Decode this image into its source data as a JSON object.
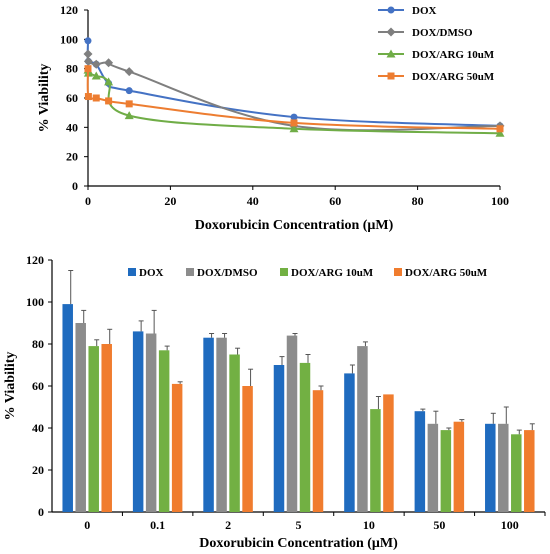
{
  "chart_data": [
    {
      "type": "line",
      "xlabel": "Doxorubicin Concentration (μM)",
      "ylabel": "% Viability",
      "xlim": [
        0,
        100
      ],
      "ylim": [
        0,
        120
      ],
      "xticks": [
        0,
        20,
        40,
        60,
        80,
        100
      ],
      "yticks": [
        0,
        20,
        40,
        60,
        80,
        100,
        120
      ],
      "grid": false,
      "legend_position": "top-right",
      "series": [
        {
          "name": "DOX",
          "color": "#4472C4",
          "marker": "circle",
          "x": [
            0,
            0.1,
            2,
            5,
            10,
            50,
            100
          ],
          "y": [
            99,
            85,
            83,
            70,
            65,
            47,
            41
          ]
        },
        {
          "name": "DOX/DMSO",
          "color": "#7F7F7F",
          "marker": "diamond",
          "x": [
            0,
            0.1,
            2,
            5,
            10,
            50,
            100
          ],
          "y": [
            90,
            85,
            83,
            84,
            78,
            41,
            41
          ]
        },
        {
          "name": "DOX/ARG 10uM",
          "color": "#70AD47",
          "marker": "triangle",
          "x": [
            0,
            0.1,
            2,
            5,
            10,
            50,
            100
          ],
          "y": [
            79,
            77,
            75,
            71,
            48,
            39,
            36
          ]
        },
        {
          "name": "DOX/ARG 50uM",
          "color": "#ED7D31",
          "marker": "square",
          "x": [
            0,
            0.1,
            2,
            5,
            10,
            50,
            100
          ],
          "y": [
            80,
            61,
            60,
            58,
            56,
            43,
            39
          ]
        }
      ]
    },
    {
      "type": "bar",
      "xlabel": "Doxorubicin Concentration (μM)",
      "ylabel": "% Viability",
      "ylim": [
        0,
        120
      ],
      "yticks": [
        0,
        20,
        40,
        60,
        80,
        100,
        120
      ],
      "grid": false,
      "legend_position": "top",
      "categories": [
        "0",
        "0.1",
        "2",
        "5",
        "10",
        "50",
        "100"
      ],
      "series": [
        {
          "name": "DOX",
          "color": "#1F6BBF",
          "values": [
            99,
            86,
            83,
            70,
            66,
            48,
            42
          ],
          "errors": [
            16,
            5,
            2,
            4,
            4,
            1,
            5
          ]
        },
        {
          "name": "DOX/DMSO",
          "color": "#8C8C8C",
          "values": [
            90,
            85,
            83,
            84,
            79,
            42,
            42
          ],
          "errors": [
            6,
            11,
            2,
            1,
            2,
            6,
            8
          ]
        },
        {
          "name": "DOX/ARG 10uM",
          "color": "#72B043",
          "values": [
            79,
            77,
            75,
            71,
            49,
            39,
            37
          ],
          "errors": [
            3,
            2,
            3,
            4,
            6,
            1,
            2
          ]
        },
        {
          "name": "DOX/ARG 50uM",
          "color": "#F07C2E",
          "values": [
            80,
            61,
            60,
            58,
            56,
            43,
            39
          ],
          "errors": [
            7,
            1,
            8,
            2,
            0,
            1,
            3
          ]
        }
      ]
    }
  ]
}
